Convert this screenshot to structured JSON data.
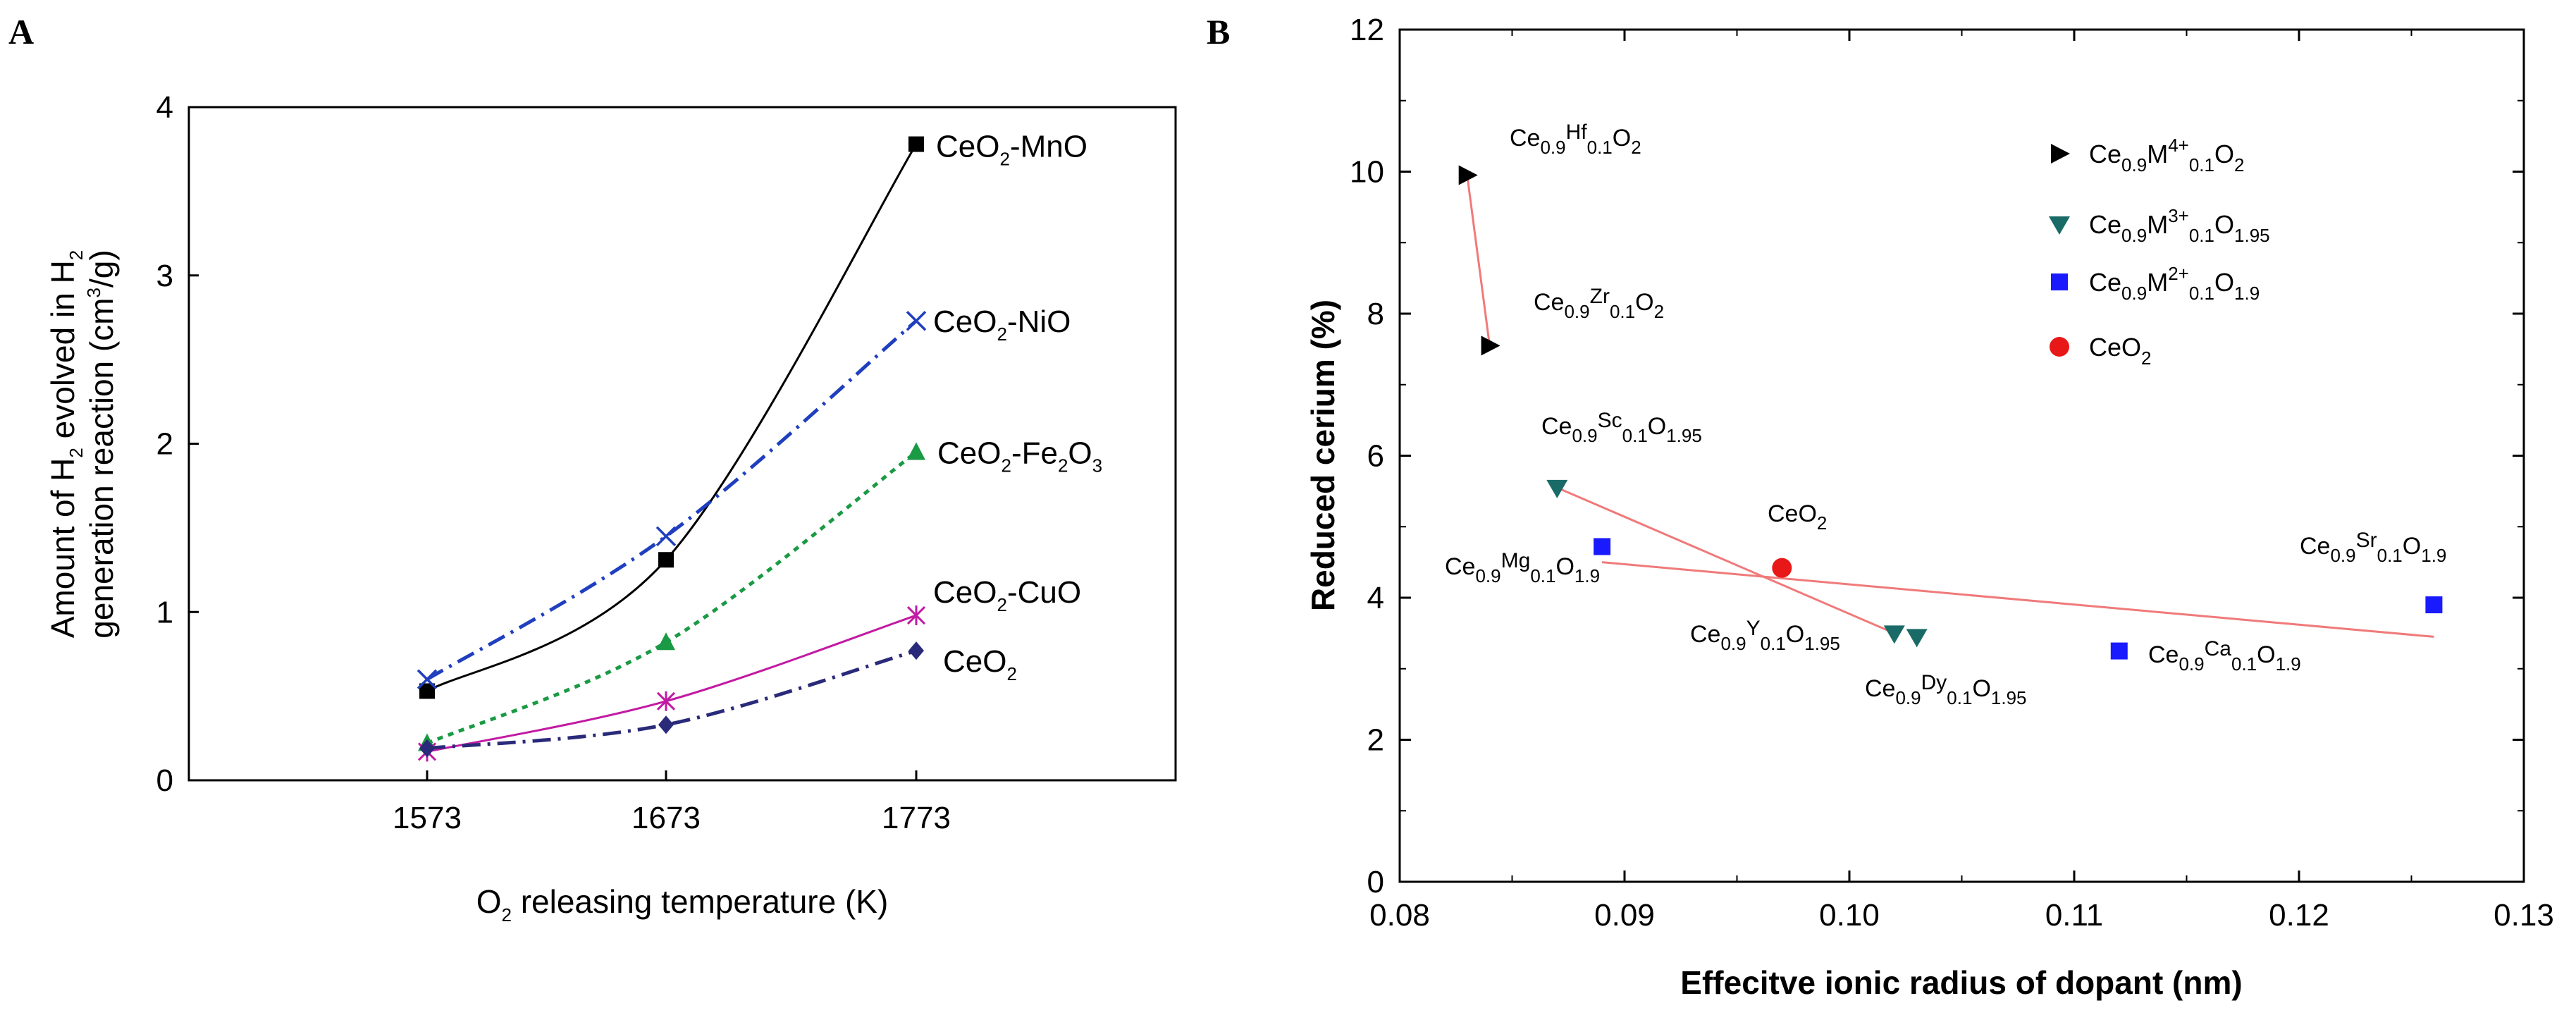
{
  "chart_data": [
    {
      "panel": "A",
      "type": "line",
      "x": [
        1573,
        1673,
        1773
      ],
      "categories": [
        "1573",
        "1673",
        "1773"
      ],
      "xlabel_parts": [
        "O",
        "2",
        " releasing temperature (K)"
      ],
      "ylabel_line1_parts": [
        "Amount of  H",
        "2",
        " evolved in H",
        "2"
      ],
      "ylabel_line2_parts": [
        "generation reaction (cm",
        "3",
        "/g)"
      ],
      "ylim": [
        0,
        4
      ],
      "yticks": [
        "0",
        "1",
        "2",
        "3",
        "4"
      ],
      "series": [
        {
          "name": "CeO2-MnO",
          "label_parts": [
            "CeO",
            "2",
            "-MnO"
          ],
          "values": [
            0.53,
            1.31,
            3.78
          ],
          "color": "#000000",
          "marker": "square",
          "dash": "solid"
        },
        {
          "name": "CeO2-NiO",
          "label_parts": [
            "CeO",
            "2",
            "-NiO"
          ],
          "values": [
            0.6,
            1.45,
            2.73
          ],
          "color": "#1f3fbf",
          "marker": "x",
          "dash": "dashdot"
        },
        {
          "name": "CeO2-Fe2O3",
          "label_parts": [
            "CeO",
            "2",
            "-Fe",
            "2",
            "O",
            "3"
          ],
          "values": [
            0.22,
            0.82,
            1.95
          ],
          "color": "#1a9a44",
          "marker": "triangle",
          "dash": "dotted"
        },
        {
          "name": "CeO2-CuO",
          "label_parts": [
            "CeO",
            "2",
            "-CuO"
          ],
          "values": [
            0.17,
            0.47,
            0.98
          ],
          "color": "#c21aa3",
          "marker": "star",
          "dash": "solid"
        },
        {
          "name": "CeO2",
          "label_parts": [
            "CeO",
            "2"
          ],
          "values": [
            0.19,
            0.33,
            0.77
          ],
          "color": "#2a2a7a",
          "marker": "diamond",
          "dash": "dashdot"
        }
      ]
    },
    {
      "panel": "B",
      "type": "scatter",
      "xlabel": "Effecitve ionic radius of dopant (nm)",
      "ylabel": "Reduced cerium (%)",
      "xlim": [
        0.08,
        0.13
      ],
      "ylim": [
        0,
        12
      ],
      "xticks": [
        "0.08",
        "0.09",
        "0.10",
        "0.11",
        "0.12",
        "0.13"
      ],
      "yticks": [
        "0",
        "2",
        "4",
        "6",
        "8",
        "10",
        "12"
      ],
      "legend": [
        {
          "group": "M4+",
          "label_parts": [
            "Ce",
            "0.9",
            "M",
            "4+",
            "0.1",
            "O",
            "2"
          ],
          "marker": "triangle-right",
          "color": "#000000"
        },
        {
          "group": "M3+",
          "label_parts": [
            "Ce",
            "0.9",
            "M",
            "3+",
            "0.1",
            "O",
            "1.95"
          ],
          "marker": "triangle-down",
          "color": "#1a6b68"
        },
        {
          "group": "M2+",
          "label_parts": [
            "Ce",
            "0.9",
            "M",
            "2+",
            "0.1",
            "O",
            "1.9"
          ],
          "marker": "square",
          "color": "#1a1aff"
        },
        {
          "group": "CeO2",
          "label_parts": [
            "CeO",
            "2"
          ],
          "marker": "circle",
          "color": "#e81818"
        }
      ],
      "points": [
        {
          "element": "Hf",
          "x": 0.083,
          "y": 9.95,
          "group": "M4+",
          "label_parts": [
            "Ce",
            "0.9",
            "Hf",
            "0.1",
            "O",
            "2"
          ]
        },
        {
          "element": "Zr",
          "x": 0.084,
          "y": 7.55,
          "group": "M4+",
          "label_parts": [
            "Ce",
            "0.9",
            "Zr",
            "0.1",
            "O",
            "2"
          ]
        },
        {
          "element": "Sc",
          "x": 0.087,
          "y": 5.55,
          "group": "M3+",
          "label_parts": [
            "Ce",
            "0.9",
            "Sc",
            "0.1",
            "O",
            "1.95"
          ]
        },
        {
          "element": "Y",
          "x": 0.102,
          "y": 3.5,
          "group": "M3+",
          "label_parts": [
            "Ce",
            "0.9",
            "Y",
            "0.1",
            "O",
            "1.95"
          ]
        },
        {
          "element": "Dy",
          "x": 0.103,
          "y": 3.45,
          "group": "M3+",
          "label_parts": [
            "Ce",
            "0.9",
            "Dy",
            "0.1",
            "O",
            "1.95"
          ]
        },
        {
          "element": "Mg",
          "x": 0.089,
          "y": 4.72,
          "group": "M2+",
          "label_parts": [
            "Ce",
            "0.9",
            "Mg",
            "0.1",
            "O",
            "1.9"
          ]
        },
        {
          "element": "Ca",
          "x": 0.112,
          "y": 3.25,
          "group": "M2+",
          "label_parts": [
            "Ce",
            "0.9",
            "Ca",
            "0.1",
            "O",
            "1.9"
          ]
        },
        {
          "element": "Sr",
          "x": 0.126,
          "y": 3.9,
          "group": "M2+",
          "label_parts": [
            "Ce",
            "0.9",
            "Sr",
            "0.1",
            "O",
            "1.9"
          ]
        },
        {
          "element": "Ce",
          "x": 0.097,
          "y": 4.42,
          "group": "CeO2",
          "label_parts": [
            "CeO",
            "2"
          ]
        }
      ],
      "trend_lines": [
        {
          "from": [
            0.083,
            9.95
          ],
          "to": [
            0.084,
            7.55
          ]
        },
        {
          "from": [
            0.087,
            5.55
          ],
          "to": [
            0.102,
            3.5
          ]
        },
        {
          "from": [
            0.089,
            4.5
          ],
          "to": [
            0.126,
            3.45
          ]
        }
      ],
      "trend_color": "#f07a7a"
    }
  ]
}
